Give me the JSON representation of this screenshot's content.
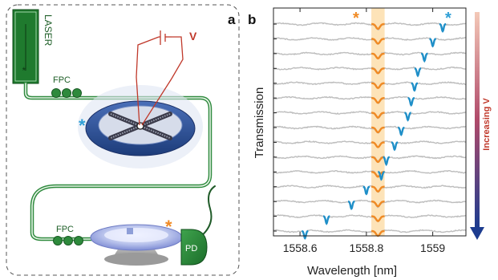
{
  "panel_a": {
    "label": "a",
    "laser_label": "LASER",
    "fpc_label_top": "FPC",
    "fpc_label_bottom": "FPC",
    "pd_label": "PD",
    "voltage_label": "V",
    "blue_marker": "*",
    "orange_marker": "*",
    "colors": {
      "fiber": "#2f8a3e",
      "laser": "#1f7a2e",
      "wire": "#c0392b",
      "blue": "#2f9fd6",
      "orange": "#f08a24"
    }
  },
  "panel_b": {
    "label": "b",
    "orange_marker": "*",
    "blue_marker": "*",
    "arrow_label": "Increasing V",
    "colors": {
      "trace": "#bdbdbd",
      "tracked_dip": "#1f8fc8",
      "fixed_dip": "#f08a24",
      "band": "#fde3b8",
      "arrow_top": "#f4c9b8",
      "arrow_bottom": "#1d3c8f",
      "arrow_text": "#c0392b"
    },
    "chart_data": {
      "type": "line",
      "xlabel": "Wavelength [nm]",
      "ylabel": "Transmission",
      "xlim": [
        1558.52,
        1559.1
      ],
      "x_ticks": [
        1558.6,
        1558.8,
        1559
      ],
      "x_tick_labels": [
        "1558.6",
        "1558.8",
        "1559"
      ],
      "y_ticks_shown": false,
      "num_traces": 15,
      "fixed_resonance_nm": 1558.835,
      "highlight_band_nm": [
        1558.815,
        1558.855
      ],
      "tracked_resonance_nm": [
        1559.03,
        1559.0,
        1558.975,
        1558.955,
        1558.945,
        1558.935,
        1558.925,
        1558.905,
        1558.885,
        1558.86,
        1558.845,
        1558.8,
        1558.755,
        1558.68,
        1558.615
      ]
    }
  }
}
